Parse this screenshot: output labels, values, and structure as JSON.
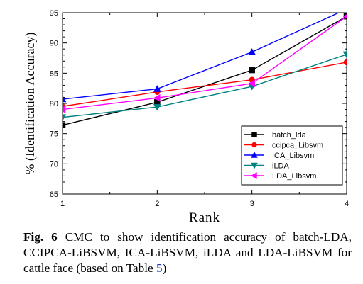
{
  "chart_data": {
    "type": "line",
    "x": [
      1,
      2,
      3,
      4
    ],
    "xlabel": "Rank",
    "ylabel": "% (Identification Accuracy)",
    "xlim": [
      1,
      4
    ],
    "ylim": [
      65,
      95
    ],
    "xticks": [
      "1",
      "2",
      "3",
      "4"
    ],
    "yticks": [
      "65",
      "70",
      "75",
      "80",
      "85",
      "90",
      "95"
    ],
    "grid": false,
    "legend_position": "bottom-right",
    "series": [
      {
        "name": "batch_lda",
        "values": [
          76.4,
          80.2,
          85.5,
          94.4
        ],
        "color": "#000000",
        "marker": "square"
      },
      {
        "name": "ccipca_Libsvm",
        "values": [
          79.5,
          81.9,
          83.9,
          86.8
        ],
        "color": "#ff0000",
        "marker": "circle"
      },
      {
        "name": "ICA_Libsvm",
        "values": [
          80.7,
          82.4,
          88.5,
          95.6
        ],
        "color": "#0000ff",
        "marker": "triangle-up"
      },
      {
        "name": "iLDA",
        "values": [
          77.7,
          79.4,
          82.8,
          88.1
        ],
        "color": "#008080",
        "marker": "triangle-down"
      },
      {
        "name": "LDA_Libsvm",
        "values": [
          79.0,
          80.9,
          83.3,
          94.4
        ],
        "color": "#ff00ff",
        "marker": "triangle-left"
      }
    ]
  },
  "caption": {
    "label": "Fig. 6",
    "text_before": " CMC to show identification accuracy of batch-LDA, CCIPCA-LiBSVM, ICA-LiBSVM, iLDA and LDA-LiBSVM for cattle face (based on Table ",
    "ref": "5",
    "text_after": ")"
  }
}
